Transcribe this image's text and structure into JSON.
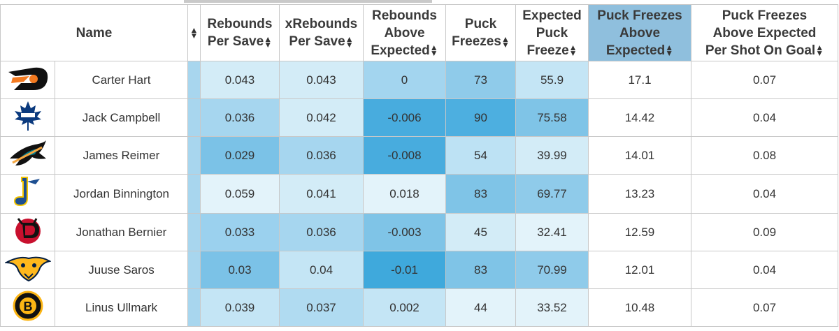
{
  "columns": {
    "name": "Name",
    "rebounds_per_save": [
      "Rebounds",
      "Per Save"
    ],
    "x_rebounds_per_save": [
      "xRebounds",
      "Per Save"
    ],
    "rebounds_above_expected": [
      "Rebounds",
      "Above",
      "Expected"
    ],
    "puck_freezes": [
      "Puck",
      "Freezes"
    ],
    "expected_puck_freeze": [
      "Expected",
      "Puck",
      "Freeze"
    ],
    "puck_freezes_above_expected": [
      "Puck Freezes",
      "Above",
      "Expected"
    ],
    "pfae_per_shot": [
      "Puck Freezes",
      "Above Expected",
      "Per Shot On Goal"
    ]
  },
  "sorted_column": "puck_freezes_above_expected",
  "colors": {
    "sorted_header": "#8fbfdd",
    "scale_lightest": "#d3ecf7",
    "scale_darkest": "#3fa9dc"
  },
  "rows": [
    {
      "team_icon": "flyers-logo-icon",
      "name": "Carter Hart",
      "rebounds_per_save": "0.043",
      "x_rebounds_per_save": "0.043",
      "rebounds_above_expected": "0",
      "puck_freezes": "73",
      "expected_puck_freeze": "55.9",
      "pfae": "17.1",
      "pfae_per_shot": "0.07",
      "shade": {
        "spacer": "#a8d6ee",
        "rps": "#d3ecf7",
        "xrps": "#d3ecf7",
        "rae": "#a3d5ef",
        "pf": "#8fcbea",
        "epf": "#c4e5f5"
      }
    },
    {
      "team_icon": "maple-leafs-logo-icon",
      "name": "Jack Campbell",
      "rebounds_per_save": "0.036",
      "x_rebounds_per_save": "0.042",
      "rebounds_above_expected": "-0.006",
      "puck_freezes": "90",
      "expected_puck_freeze": "75.58",
      "pfae": "14.42",
      "pfae_per_shot": "0.04",
      "shade": {
        "spacer": "#a8d6ee",
        "rps": "#a6d6ef",
        "xrps": "#d3ecf7",
        "rae": "#48acde",
        "pf": "#4dafe0",
        "epf": "#7fc4e7"
      }
    },
    {
      "team_icon": "sharks-logo-icon",
      "name": "James Reimer",
      "rebounds_per_save": "0.029",
      "x_rebounds_per_save": "0.036",
      "rebounds_above_expected": "-0.008",
      "puck_freezes": "54",
      "expected_puck_freeze": "39.99",
      "pfae": "14.01",
      "pfae_per_shot": "0.08",
      "shade": {
        "spacer": "#a8d6ee",
        "rps": "#7bc2e7",
        "xrps": "#a6d6ef",
        "rae": "#48acde",
        "pf": "#bde2f4",
        "epf": "#d3ecf7"
      }
    },
    {
      "team_icon": "blues-logo-icon",
      "name": "Jordan Binnington",
      "rebounds_per_save": "0.059",
      "x_rebounds_per_save": "0.041",
      "rebounds_above_expected": "0.018",
      "puck_freezes": "83",
      "expected_puck_freeze": "69.77",
      "pfae": "13.23",
      "pfae_per_shot": "0.04",
      "shade": {
        "spacer": "#a8d6ee",
        "rps": "#e3f3fa",
        "xrps": "#d3ecf7",
        "rae": "#e3f3fa",
        "pf": "#7fc4e7",
        "epf": "#8fcbea"
      }
    },
    {
      "team_icon": "devils-logo-icon",
      "name": "Jonathan Bernier",
      "rebounds_per_save": "0.033",
      "x_rebounds_per_save": "0.036",
      "rebounds_above_expected": "-0.003",
      "puck_freezes": "45",
      "expected_puck_freeze": "32.41",
      "pfae": "12.59",
      "pfae_per_shot": "0.09",
      "shade": {
        "spacer": "#a8d6ee",
        "rps": "#9bd1ee",
        "xrps": "#a6d6ef",
        "rae": "#7fc4e7",
        "pf": "#d3ecf7",
        "epf": "#e3f3fa"
      }
    },
    {
      "team_icon": "predators-logo-icon",
      "name": "Juuse Saros",
      "rebounds_per_save": "0.03",
      "x_rebounds_per_save": "0.04",
      "rebounds_above_expected": "-0.01",
      "puck_freezes": "83",
      "expected_puck_freeze": "70.99",
      "pfae": "12.01",
      "pfae_per_shot": "0.04",
      "shade": {
        "spacer": "#a8d6ee",
        "rps": "#7bc2e7",
        "xrps": "#c4e5f5",
        "rae": "#3fa9dc",
        "pf": "#7fc4e7",
        "epf": "#8fcbea"
      }
    },
    {
      "team_icon": "bruins-logo-icon",
      "name": "Linus Ullmark",
      "rebounds_per_save": "0.039",
      "x_rebounds_per_save": "0.037",
      "rebounds_above_expected": "0.002",
      "puck_freezes": "44",
      "expected_puck_freeze": "33.52",
      "pfae": "10.48",
      "pfae_per_shot": "0.07",
      "shade": {
        "spacer": "#a8d6ee",
        "rps": "#c4e5f5",
        "xrps": "#b0dbf1",
        "rae": "#c4e5f5",
        "pf": "#e3f3fa",
        "epf": "#e3f3fa"
      }
    }
  ]
}
